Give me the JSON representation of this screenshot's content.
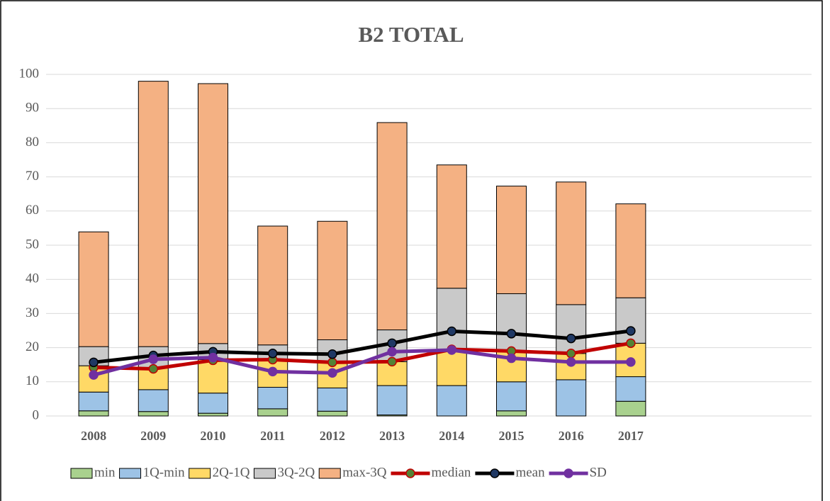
{
  "chart_data": {
    "type": "bar",
    "title": "B2 TOTAL",
    "categories": [
      "2008",
      "2009",
      "2010",
      "2011",
      "2012",
      "2013",
      "2014",
      "2015",
      "2016",
      "2017"
    ],
    "stacked": true,
    "ylim": [
      0,
      100
    ],
    "yticks": [
      0,
      10,
      20,
      30,
      40,
      50,
      60,
      70,
      80,
      90,
      100
    ],
    "grid": true,
    "legend": "bottom",
    "series": [
      {
        "name": "min",
        "type": "bar",
        "color": "#a9d18e",
        "values": [
          1.5,
          1.3,
          0.8,
          2.1,
          1.4,
          0.3,
          0,
          1.5,
          0,
          4.3
        ]
      },
      {
        "name": "1Q-min",
        "type": "bar",
        "color": "#9dc3e6",
        "values": [
          5.5,
          6.4,
          5.9,
          6.3,
          6.8,
          8.6,
          8.9,
          8.5,
          10.6,
          7.2
        ]
      },
      {
        "name": "2Q-1Q",
        "type": "bar",
        "color": "#ffd966",
        "values": [
          7.7,
          6.3,
          9.8,
          7.9,
          7.5,
          7,
          10.6,
          9,
          7.7,
          9.8
        ]
      },
      {
        "name": "3Q-2Q",
        "type": "bar",
        "color": "#c9c9c9",
        "values": [
          5.6,
          6.3,
          4.7,
          4.5,
          6.6,
          9.3,
          17.9,
          16.8,
          14.3,
          13.3
        ]
      },
      {
        "name": "max-3Q",
        "type": "bar",
        "color": "#f4b183",
        "values": [
          33.6,
          77.7,
          76.1,
          34.8,
          34.7,
          60.7,
          36.1,
          31.5,
          35.9,
          27.5
        ]
      },
      {
        "name": "median",
        "type": "line",
        "color": "#c00000",
        "marker_color": "#548235",
        "values": [
          14.2,
          13.8,
          16.3,
          16.5,
          15.7,
          15.9,
          19.5,
          19,
          18.3,
          21.3
        ]
      },
      {
        "name": "mean",
        "type": "line",
        "color": "#000000",
        "marker_color": "#1f3864",
        "values": [
          15.7,
          17.7,
          18.8,
          18.3,
          18.1,
          21.3,
          24.8,
          24.1,
          22.7,
          24.9
        ]
      },
      {
        "name": "SD",
        "type": "line",
        "color": "#7030a0",
        "marker_color": "#7030a0",
        "values": [
          12,
          16.6,
          17.1,
          13,
          12.6,
          18.8,
          19.3,
          16.9,
          15.8,
          15.8
        ]
      }
    ]
  }
}
